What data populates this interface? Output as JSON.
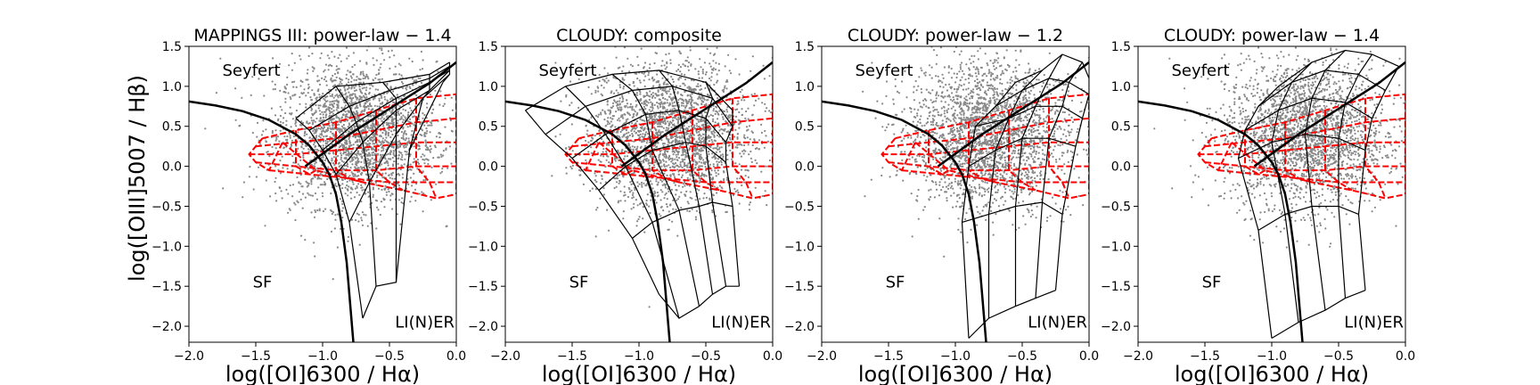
{
  "figure": {
    "ylabel": "log([OIII]5007 / Hβ)"
  },
  "chart_data": [
    {
      "type": "scatter",
      "title": "MAPPINGS III: power-law − 1.4",
      "xlabel": "log([OI]6300 / Hα)",
      "xlim": [
        -2.0,
        0.0
      ],
      "ylim": [
        -2.2,
        1.5
      ],
      "xticks": [
        "−2.0",
        "−1.5",
        "−1.0",
        "−0.5",
        "0.0"
      ],
      "yticks": [
        "−2.0",
        "−1.5",
        "−1.0",
        "−0.5",
        "0.0",
        "0.5",
        "1.0",
        "1.5"
      ],
      "region_labels": {
        "seyfert": "Seyfert",
        "sf": "SF",
        "liner": "LI(N)ER"
      },
      "model_grid": {
        "rows": [
          [
            [
              -1.2,
              0.6
            ],
            [
              -0.9,
              1.0
            ],
            [
              -0.55,
              1.05
            ],
            [
              -0.2,
              1.15
            ],
            [
              -0.05,
              1.3
            ]
          ],
          [
            [
              -1.1,
              0.45
            ],
            [
              -0.8,
              0.75
            ],
            [
              -0.5,
              0.95
            ],
            [
              -0.2,
              1.1
            ],
            [
              -0.05,
              1.25
            ]
          ],
          [
            [
              -1.0,
              0.2
            ],
            [
              -0.75,
              0.55
            ],
            [
              -0.45,
              0.85
            ],
            [
              -0.2,
              1.05
            ],
            [
              -0.05,
              1.2
            ]
          ],
          [
            [
              -0.9,
              -0.1
            ],
            [
              -0.7,
              0.3
            ],
            [
              -0.45,
              0.7
            ],
            [
              -0.2,
              0.95
            ],
            [
              -0.05,
              1.2
            ]
          ],
          [
            [
              -0.8,
              -0.7
            ],
            [
              -0.65,
              -0.2
            ],
            [
              -0.45,
              0.4
            ],
            [
              -0.25,
              0.85
            ],
            [
              -0.05,
              1.15
            ]
          ],
          [
            [
              -0.7,
              -1.9
            ],
            [
              -0.6,
              -1.5
            ],
            [
              -0.45,
              -1.45
            ],
            [
              -0.35,
              0.2
            ],
            [
              -0.1,
              1.05
            ]
          ]
        ]
      }
    },
    {
      "type": "scatter",
      "title": "CLOUDY: composite",
      "xlabel": "log([OI]6300 / Hα)",
      "xlim": [
        -2.0,
        0.0
      ],
      "ylim": [
        -2.2,
        1.5
      ],
      "xticks": [
        "−2.0",
        "−1.5",
        "−1.0",
        "−0.5",
        "0.0"
      ],
      "yticks": [
        "−2.0",
        "−1.5",
        "−1.0",
        "−0.5",
        "0.0",
        "0.5",
        "1.0",
        "1.5"
      ],
      "region_labels": {
        "seyfert": "Seyfert",
        "sf": "SF",
        "liner": "LI(N)ER"
      },
      "model_grid": {
        "rows": [
          [
            [
              -1.85,
              0.7
            ],
            [
              -1.55,
              1.0
            ],
            [
              -1.2,
              1.15
            ],
            [
              -0.85,
              1.2
            ],
            [
              -0.5,
              1.05
            ],
            [
              -0.3,
              0.7
            ]
          ],
          [
            [
              -1.7,
              0.4
            ],
            [
              -1.4,
              0.75
            ],
            [
              -1.05,
              0.95
            ],
            [
              -0.75,
              1.0
            ],
            [
              -0.45,
              0.85
            ],
            [
              -0.3,
              0.5
            ]
          ],
          [
            [
              -1.5,
              0.1
            ],
            [
              -1.25,
              0.4
            ],
            [
              -0.95,
              0.65
            ],
            [
              -0.7,
              0.7
            ],
            [
              -0.5,
              0.6
            ],
            [
              -0.35,
              0.3
            ]
          ],
          [
            [
              -1.3,
              -0.3
            ],
            [
              -1.1,
              0.0
            ],
            [
              -0.9,
              0.2
            ],
            [
              -0.65,
              0.3
            ],
            [
              -0.5,
              0.25
            ],
            [
              -0.35,
              0.05
            ]
          ],
          [
            [
              -1.05,
              -0.9
            ],
            [
              -0.9,
              -0.7
            ],
            [
              -0.7,
              -0.55
            ],
            [
              -0.55,
              -0.5
            ],
            [
              -0.45,
              -0.45
            ],
            [
              -0.3,
              -0.5
            ]
          ],
          [
            [
              -0.85,
              -1.6
            ],
            [
              -0.7,
              -1.9
            ],
            [
              -0.55,
              -1.75
            ],
            [
              -0.45,
              -1.6
            ],
            [
              -0.35,
              -1.5
            ],
            [
              -0.25,
              -1.5
            ]
          ]
        ]
      }
    },
    {
      "type": "scatter",
      "title": "CLOUDY: power-law − 1.2",
      "xlabel": "log([OI]6300 / Hα)",
      "xlim": [
        -2.0,
        0.0
      ],
      "ylim": [
        -2.2,
        1.5
      ],
      "xticks": [
        "−2.0",
        "−1.5",
        "−1.0",
        "−0.5",
        "0.0"
      ],
      "yticks": [
        "−2.0",
        "−1.5",
        "−1.0",
        "−0.5",
        "0.0",
        "0.5",
        "1.0",
        "1.5"
      ],
      "region_labels": {
        "seyfert": "Seyfert",
        "sf": "SF",
        "liner": "LI(N)ER"
      },
      "model_grid": {
        "rows": [
          [
            [
              -0.55,
              1.05
            ],
            [
              -0.35,
              1.2
            ],
            [
              -0.2,
              1.4
            ],
            [
              -0.05,
              1.3
            ],
            [
              0.0,
              1.1
            ]
          ],
          [
            [
              -0.7,
              0.75
            ],
            [
              -0.5,
              0.95
            ],
            [
              -0.3,
              1.1
            ],
            [
              -0.15,
              1.05
            ],
            [
              0.0,
              0.9
            ]
          ],
          [
            [
              -0.85,
              0.5
            ],
            [
              -0.6,
              0.6
            ],
            [
              -0.4,
              0.75
            ],
            [
              -0.2,
              0.75
            ],
            [
              -0.05,
              0.6
            ]
          ],
          [
            [
              -0.9,
              0.0
            ],
            [
              -0.7,
              0.2
            ],
            [
              -0.5,
              0.35
            ],
            [
              -0.3,
              0.35
            ],
            [
              -0.1,
              0.25
            ]
          ],
          [
            [
              -0.95,
              -0.7
            ],
            [
              -0.75,
              -0.6
            ],
            [
              -0.55,
              -0.5
            ],
            [
              -0.35,
              -0.45
            ],
            [
              -0.2,
              -0.6
            ]
          ],
          [
            [
              -0.9,
              -2.15
            ],
            [
              -0.75,
              -1.9
            ],
            [
              -0.55,
              -1.75
            ],
            [
              -0.4,
              -1.65
            ],
            [
              -0.25,
              -1.55
            ]
          ]
        ]
      }
    },
    {
      "type": "scatter",
      "title": "CLOUDY: power-law − 1.4",
      "xlabel": "log([OI]6300 / Hα)",
      "xlim": [
        -2.0,
        0.0
      ],
      "ylim": [
        -2.2,
        1.5
      ],
      "xticks": [
        "−2.0",
        "−1.5",
        "−1.0",
        "−0.5",
        "0.0"
      ],
      "yticks": [
        "−2.0",
        "−1.5",
        "−1.0",
        "−0.5",
        "0.0",
        "0.5",
        "1.0",
        "1.5"
      ],
      "region_labels": {
        "seyfert": "Seyfert",
        "sf": "SF",
        "liner": "LI(N)ER"
      },
      "model_grid": {
        "rows": [
          [
            [
              -0.95,
              1.0
            ],
            [
              -0.7,
              1.3
            ],
            [
              -0.45,
              1.45
            ],
            [
              -0.25,
              1.4
            ],
            [
              -0.05,
              1.25
            ]
          ],
          [
            [
              -1.1,
              0.75
            ],
            [
              -0.85,
              1.05
            ],
            [
              -0.6,
              1.2
            ],
            [
              -0.35,
              1.15
            ],
            [
              -0.15,
              0.95
            ]
          ],
          [
            [
              -1.2,
              0.45
            ],
            [
              -0.95,
              0.7
            ],
            [
              -0.7,
              0.85
            ],
            [
              -0.45,
              0.8
            ],
            [
              -0.25,
              0.6
            ]
          ],
          [
            [
              -1.25,
              0.1
            ],
            [
              -1.0,
              0.3
            ],
            [
              -0.75,
              0.4
            ],
            [
              -0.5,
              0.35
            ],
            [
              -0.3,
              0.2
            ]
          ],
          [
            [
              -1.1,
              -0.8
            ],
            [
              -0.9,
              -0.6
            ],
            [
              -0.7,
              -0.5
            ],
            [
              -0.5,
              -0.5
            ],
            [
              -0.35,
              -0.6
            ]
          ],
          [
            [
              -1.0,
              -2.15
            ],
            [
              -0.8,
              -1.95
            ],
            [
              -0.6,
              -1.8
            ],
            [
              -0.45,
              -1.65
            ],
            [
              -0.3,
              -1.55
            ]
          ]
        ]
      }
    }
  ],
  "shared_curves": {
    "kewley_maximum_starburst": [
      [
        -2.0,
        0.81
      ],
      [
        -1.8,
        0.76
      ],
      [
        -1.6,
        0.69
      ],
      [
        -1.4,
        0.58
      ],
      [
        -1.2,
        0.4
      ],
      [
        -1.1,
        0.26
      ],
      [
        -1.0,
        0.05
      ],
      [
        -0.95,
        -0.1
      ],
      [
        -0.9,
        -0.35
      ],
      [
        -0.86,
        -0.7
      ],
      [
        -0.82,
        -1.2
      ],
      [
        -0.79,
        -1.8
      ],
      [
        -0.77,
        -2.2
      ]
    ],
    "seyfert_liner_line": [
      [
        -1.13,
        0.0
      ],
      [
        -0.8,
        0.4
      ],
      [
        -0.5,
        0.72
      ],
      [
        -0.2,
        1.04
      ],
      [
        0.0,
        1.3
      ]
    ],
    "red_dashed_grid": {
      "rows": [
        [
          [
            -1.45,
            0.35
          ],
          [
            -1.2,
            0.45
          ],
          [
            -0.9,
            0.55
          ],
          [
            -0.6,
            0.7
          ],
          [
            -0.3,
            0.85
          ],
          [
            0.0,
            0.9
          ]
        ],
        [
          [
            -1.5,
            0.25
          ],
          [
            -1.2,
            0.3
          ],
          [
            -0.9,
            0.35
          ],
          [
            -0.6,
            0.45
          ],
          [
            -0.3,
            0.55
          ],
          [
            0.0,
            0.6
          ]
        ],
        [
          [
            -1.55,
            0.15
          ],
          [
            -1.2,
            0.15
          ],
          [
            -0.9,
            0.2
          ],
          [
            -0.6,
            0.25
          ],
          [
            -0.3,
            0.3
          ],
          [
            0.0,
            0.3
          ]
        ],
        [
          [
            -1.5,
            0.05
          ],
          [
            -1.2,
            0.0
          ],
          [
            -0.9,
            -0.05
          ],
          [
            -0.6,
            -0.05
          ],
          [
            -0.3,
            0.0
          ],
          [
            0.0,
            0.0
          ]
        ],
        [
          [
            -1.4,
            -0.05
          ],
          [
            -1.1,
            -0.1
          ],
          [
            -0.8,
            -0.15
          ],
          [
            -0.5,
            -0.2
          ],
          [
            -0.2,
            -0.2
          ],
          [
            0.0,
            -0.2
          ]
        ],
        [
          [
            -1.3,
            0.3
          ],
          [
            -1.05,
            -0.05
          ],
          [
            -0.7,
            -0.2
          ],
          [
            -0.4,
            -0.3
          ],
          [
            -0.15,
            -0.4
          ],
          [
            0.0,
            -0.35
          ]
        ]
      ]
    },
    "scatter_cloud": {
      "center": [
        -0.75,
        0.4
      ],
      "spread": [
        0.3,
        0.45
      ],
      "count": 2500
    }
  }
}
